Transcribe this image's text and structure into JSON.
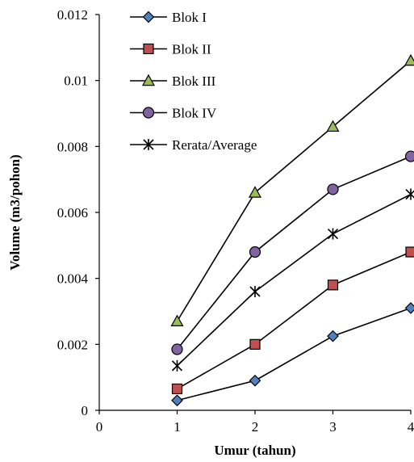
{
  "chart_data": {
    "type": "line",
    "x": [
      1,
      2,
      3,
      4
    ],
    "series": [
      {
        "name": "Blok I",
        "values": [
          0.0003,
          0.0009,
          0.00225,
          0.0031
        ],
        "marker": "diamond",
        "fill": "#4f81bd",
        "stroke": "#000000"
      },
      {
        "name": "Blok II",
        "values": [
          0.00065,
          0.002,
          0.0038,
          0.0048
        ],
        "marker": "square",
        "fill": "#c0504d",
        "stroke": "#000000"
      },
      {
        "name": "Blok III",
        "values": [
          0.0027,
          0.0066,
          0.0086,
          0.0106
        ],
        "marker": "triangle",
        "fill": "#9bbb59",
        "stroke": "#000000"
      },
      {
        "name": "Blok IV",
        "values": [
          0.00185,
          0.0048,
          0.0067,
          0.0077
        ],
        "marker": "circle",
        "fill": "#8064a2",
        "stroke": "#000000"
      },
      {
        "name": "Rerata/Average",
        "values": [
          0.00135,
          0.0036,
          0.00535,
          0.00655
        ],
        "marker": "star",
        "fill": "none",
        "stroke": "#000000"
      }
    ],
    "xlabel": "Umur (tahun)",
    "ylabel": "Volume (m3/pohon)",
    "xlim": [
      0,
      4
    ],
    "ylim": [
      0,
      0.012
    ],
    "xticks": [
      "0",
      "1",
      "2",
      "3",
      "4"
    ],
    "yticks": [
      "0",
      "0.002",
      "0.004",
      "0.006",
      "0.008",
      "0.01",
      "0.012"
    ],
    "grid": false,
    "legend_position": "top-left"
  }
}
